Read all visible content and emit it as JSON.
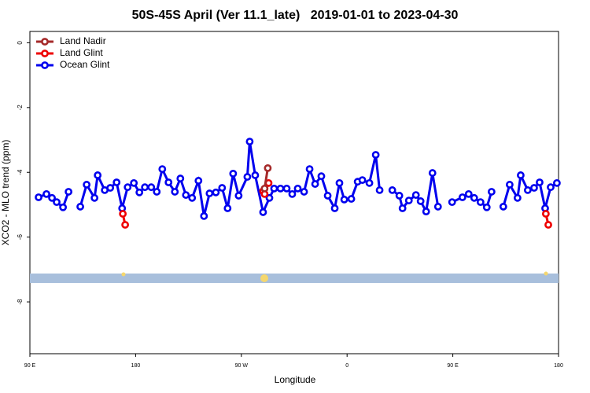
{
  "chart_data": {
    "type": "line",
    "title": "50S-45S April (Ver 11.1_late)   2019-01-01 to 2023-04-30",
    "xlabel": "Longitude",
    "ylabel": "XCO2 - MLO trend (ppm)",
    "xlim": [
      90,
      540
    ],
    "ylim": [
      -9.6,
      0.35
    ],
    "xticks": [
      {
        "value": 90,
        "label": "90 E"
      },
      180,
      {
        "value": 270,
        "label": "90 W"
      },
      {
        "value": 360,
        "label": "0"
      },
      {
        "value": 450,
        "label": "90 E"
      },
      {
        "value": 540,
        "label": "180"
      }
    ],
    "yticks": [
      0,
      -2,
      -4,
      -6,
      -8
    ],
    "legend": "upper left",
    "series": [
      {
        "name": "Land Nadir",
        "color": "#a52a2a",
        "x": [
          289.8,
          292.5
        ],
        "values": [
          -4.5,
          -3.87
        ]
      },
      {
        "name": "Land Glint",
        "color": "#ee0000",
        "x": [
          169.1,
          171.1,
          230,
          288.5,
          289.8,
          293.2,
          410,
          529.2,
          531.3
        ],
        "values": [
          -5.28,
          -5.62,
          null,
          -4.58,
          -4.67,
          -4.33,
          null,
          -5.28,
          -5.62
        ]
      },
      {
        "name": "Ocean Glint",
        "color": "#0000ee",
        "x": [
          97.4,
          104.1,
          108.8,
          112.8,
          118.2,
          122.9,
          127.9,
          132.9,
          138.3,
          145.0,
          147.7,
          153.7,
          158.4,
          163.8,
          168.5,
          173.2,
          178.5,
          183.2,
          187.9,
          193.3,
          198.0,
          202.7,
          208.0,
          213.4,
          218.1,
          222.8,
          228.1,
          233.5,
          238.2,
          242.9,
          248.3,
          253.6,
          258.3,
          263.0,
          267.7,
          275.1,
          277.1,
          281.8,
          288.5,
          293.9,
          297.9,
          303.3,
          308.6,
          313.3,
          318.0,
          323.4,
          328.1,
          332.8,
          338.1,
          343.5,
          349.5,
          353.5,
          357.6,
          363.6,
          369.0,
          373.0,
          379.0,
          384.4,
          387.7,
          393.0,
          398.5,
          404.5,
          407.2,
          412.6,
          418.6,
          422.6,
          427.3,
          432.7,
          437.4,
          443.0,
          449.4,
          458.2,
          463.5,
          468.2,
          473.6,
          478.9,
          483.0,
          488.0,
          493.0,
          498.4,
          505.1,
          507.8,
          513.8,
          519.2,
          523.9,
          528.6,
          533.3,
          538.6
        ],
        "values": [
          -4.77,
          -4.67,
          -4.79,
          -4.92,
          -5.08,
          -4.6,
          null,
          -5.06,
          -4.38,
          -4.79,
          -4.09,
          -4.55,
          -4.48,
          -4.31,
          -5.11,
          -4.46,
          -4.33,
          -4.62,
          -4.46,
          -4.46,
          -4.6,
          -3.9,
          -4.31,
          -4.6,
          -4.19,
          -4.7,
          -4.79,
          -4.26,
          -5.35,
          -4.65,
          -4.62,
          -4.48,
          -5.11,
          -4.04,
          -4.72,
          -4.14,
          -3.05,
          -4.09,
          -5.23,
          -4.79,
          -4.5,
          -4.5,
          -4.5,
          -4.67,
          -4.5,
          -4.6,
          -3.9,
          -4.36,
          -4.12,
          -4.72,
          -5.11,
          -4.33,
          -4.84,
          -4.82,
          -4.29,
          -4.24,
          -4.33,
          -3.46,
          -4.55,
          null,
          -4.55,
          -4.72,
          -5.11,
          -4.87,
          -4.7,
          -4.89,
          -5.21,
          -4.02,
          -5.06,
          null,
          -4.92,
          -4.77,
          -4.67,
          -4.79,
          -4.92,
          -5.08,
          -4.6,
          null,
          -5.06,
          -4.38,
          -4.79,
          -4.09,
          -4.55,
          -4.48,
          -4.31,
          -5.11,
          -4.46,
          -4.33
        ]
      }
    ]
  }
}
